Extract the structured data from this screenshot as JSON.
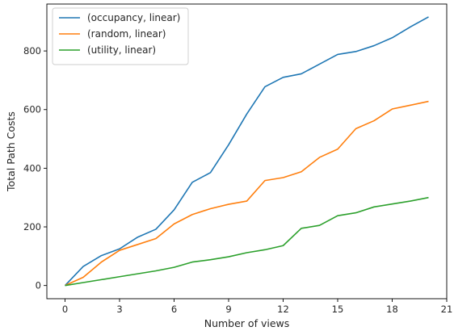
{
  "chart_data": {
    "type": "line",
    "title": "",
    "xlabel": "Number of views",
    "ylabel": "Total Path Costs",
    "xlim": [
      -1,
      21
    ],
    "ylim": [
      -45,
      960
    ],
    "xticks": [
      0,
      3,
      6,
      9,
      12,
      15,
      18,
      21
    ],
    "yticks": [
      0,
      200,
      400,
      600,
      800
    ],
    "xtick_labels": [
      "0",
      "3",
      "6",
      "9",
      "12",
      "15",
      "18",
      "21"
    ],
    "ytick_labels": [
      "0",
      "200",
      "400",
      "600",
      "800"
    ],
    "grid": false,
    "legend_position": "upper-left",
    "x": [
      0,
      1,
      2,
      3,
      4,
      5,
      6,
      7,
      8,
      9,
      10,
      11,
      12,
      13,
      14,
      15,
      16,
      17,
      18,
      19,
      20
    ],
    "series": [
      {
        "name": "(occupancy, linear)",
        "color": "#1f77b4",
        "values": [
          0,
          65,
          102,
          125,
          165,
          192,
          258,
          352,
          385,
          480,
          585,
          678,
          710,
          722,
          755,
          788,
          798,
          818,
          845,
          882,
          916
        ]
      },
      {
        "name": "(random, linear)",
        "color": "#ff7f0e",
        "values": [
          0,
          28,
          80,
          120,
          140,
          160,
          210,
          242,
          262,
          277,
          288,
          358,
          368,
          388,
          437,
          465,
          535,
          562,
          602,
          615,
          628
        ]
      },
      {
        "name": "(utility, linear)",
        "color": "#2ca02c",
        "values": [
          0,
          10,
          20,
          30,
          40,
          50,
          62,
          80,
          88,
          98,
          112,
          122,
          136,
          195,
          205,
          238,
          248,
          268,
          278,
          288,
          300
        ]
      }
    ]
  }
}
